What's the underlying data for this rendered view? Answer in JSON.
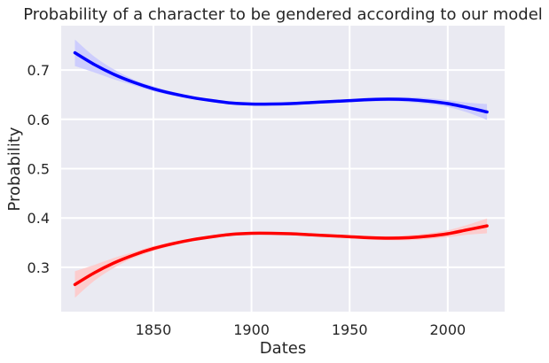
{
  "chart_data": {
    "type": "line",
    "title": "Probability of a character to be gendered according to our model",
    "xlabel": "Dates",
    "ylabel": "Probability",
    "xlim": [
      1803,
      2029
    ],
    "ylim": [
      0.21,
      0.79
    ],
    "x_ticks": [
      1850,
      1900,
      1950,
      2000
    ],
    "y_ticks": [
      0.3,
      0.4,
      0.5,
      0.6,
      0.7
    ],
    "grid": true,
    "legend": "none",
    "background_color": "#eaeaf2",
    "series": [
      {
        "color": "#0000ff",
        "band_color": "#c8c8ff",
        "x": [
          1810,
          1820,
          1830,
          1840,
          1850,
          1860,
          1870,
          1880,
          1890,
          1900,
          1910,
          1920,
          1930,
          1940,
          1950,
          1960,
          1970,
          1980,
          1990,
          2000,
          2010,
          2020
        ],
        "values": [
          0.735,
          0.711,
          0.691,
          0.675,
          0.662,
          0.652,
          0.644,
          0.638,
          0.633,
          0.631,
          0.631,
          0.632,
          0.634,
          0.636,
          0.638,
          0.64,
          0.641,
          0.64,
          0.637,
          0.632,
          0.624,
          0.615
        ],
        "lower": [
          0.708,
          0.695,
          0.681,
          0.669,
          0.657,
          0.648,
          0.641,
          0.635,
          0.631,
          0.629,
          0.629,
          0.63,
          0.632,
          0.633,
          0.635,
          0.636,
          0.637,
          0.635,
          0.631,
          0.625,
          0.614,
          0.599
        ],
        "upper": [
          0.762,
          0.727,
          0.701,
          0.681,
          0.667,
          0.656,
          0.647,
          0.641,
          0.635,
          0.633,
          0.633,
          0.634,
          0.636,
          0.639,
          0.641,
          0.644,
          0.645,
          0.645,
          0.643,
          0.639,
          0.634,
          0.631
        ]
      },
      {
        "color": "#ff0000",
        "band_color": "#ffc8c8",
        "x": [
          1810,
          1820,
          1830,
          1840,
          1850,
          1860,
          1870,
          1880,
          1890,
          1900,
          1910,
          1920,
          1930,
          1940,
          1950,
          1960,
          1970,
          1980,
          1990,
          2000,
          2010,
          2020
        ],
        "values": [
          0.265,
          0.289,
          0.309,
          0.325,
          0.338,
          0.348,
          0.356,
          0.362,
          0.367,
          0.369,
          0.369,
          0.368,
          0.366,
          0.364,
          0.362,
          0.36,
          0.359,
          0.36,
          0.363,
          0.368,
          0.376,
          0.384
        ],
        "lower": [
          0.238,
          0.273,
          0.299,
          0.319,
          0.333,
          0.344,
          0.353,
          0.359,
          0.365,
          0.367,
          0.367,
          0.366,
          0.364,
          0.361,
          0.359,
          0.356,
          0.355,
          0.355,
          0.357,
          0.361,
          0.366,
          0.369
        ],
        "upper": [
          0.292,
          0.305,
          0.319,
          0.331,
          0.343,
          0.352,
          0.359,
          0.365,
          0.369,
          0.371,
          0.371,
          0.37,
          0.368,
          0.367,
          0.365,
          0.364,
          0.363,
          0.365,
          0.369,
          0.375,
          0.386,
          0.399
        ]
      }
    ]
  }
}
